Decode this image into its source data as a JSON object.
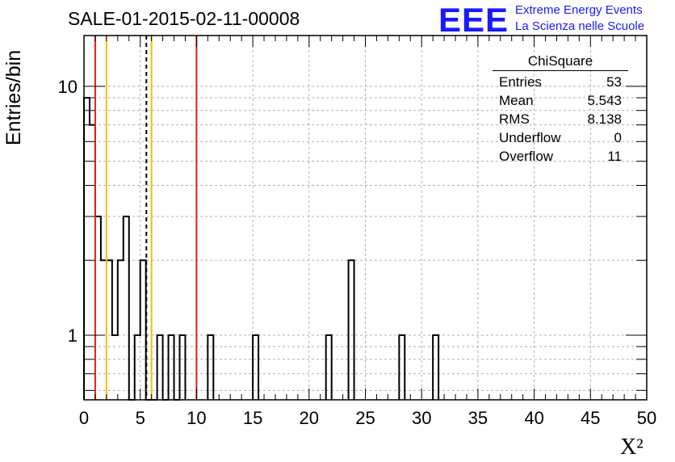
{
  "header": {
    "title": "SALE-01-2015-02-11-00008",
    "logo_text": "EEE",
    "logo_line1": "Extreme Energy Events",
    "logo_line2": "La Scienza nelle Scuole"
  },
  "stats_box": {
    "title": "ChiSquare",
    "rows": [
      {
        "label": "Entries",
        "value": "53"
      },
      {
        "label": "Mean",
        "value": "5.543"
      },
      {
        "label": "RMS",
        "value": "8.138"
      },
      {
        "label": "Underflow",
        "value": "0"
      },
      {
        "label": "Overflow",
        "value": "11"
      }
    ]
  },
  "chart_data": {
    "type": "bar",
    "histogram": true,
    "xlabel": "X²",
    "ylabel": "Entries/bin",
    "xlim": [
      0,
      50
    ],
    "ylim": [
      0.55,
      16
    ],
    "yscale": "log",
    "grid": true,
    "bin_width": 0.5,
    "x_ticks": [
      "0",
      "5",
      "10",
      "15",
      "20",
      "25",
      "30",
      "35",
      "40",
      "45",
      "50"
    ],
    "y_ticks": [
      "1",
      "10"
    ],
    "bins": [
      {
        "x": 0.0,
        "count": 9
      },
      {
        "x": 0.5,
        "count": 7
      },
      {
        "x": 1.0,
        "count": 3
      },
      {
        "x": 1.5,
        "count": 2
      },
      {
        "x": 2.0,
        "count": 2
      },
      {
        "x": 2.5,
        "count": 1
      },
      {
        "x": 3.0,
        "count": 2
      },
      {
        "x": 3.5,
        "count": 3
      },
      {
        "x": 4.0,
        "count": 0
      },
      {
        "x": 4.5,
        "count": 1
      },
      {
        "x": 5.0,
        "count": 2
      },
      {
        "x": 5.5,
        "count": 0
      },
      {
        "x": 6.0,
        "count": 0
      },
      {
        "x": 6.5,
        "count": 1
      },
      {
        "x": 7.0,
        "count": 0
      },
      {
        "x": 7.5,
        "count": 1
      },
      {
        "x": 8.0,
        "count": 0
      },
      {
        "x": 8.5,
        "count": 1
      },
      {
        "x": 11.0,
        "count": 1
      },
      {
        "x": 15.0,
        "count": 1
      },
      {
        "x": 21.5,
        "count": 1
      },
      {
        "x": 23.5,
        "count": 2
      },
      {
        "x": 28.0,
        "count": 1
      },
      {
        "x": 31.0,
        "count": 1
      }
    ],
    "vlines": [
      {
        "x": 1.0,
        "color": "#e0201a",
        "style": "solid"
      },
      {
        "x": 2.0,
        "color": "#f0c000",
        "style": "solid"
      },
      {
        "x": 5.543,
        "color": "#000000",
        "style": "dashed"
      },
      {
        "x": 6.0,
        "color": "#f0c000",
        "style": "solid"
      },
      {
        "x": 10.0,
        "color": "#e0201a",
        "style": "solid"
      }
    ]
  }
}
